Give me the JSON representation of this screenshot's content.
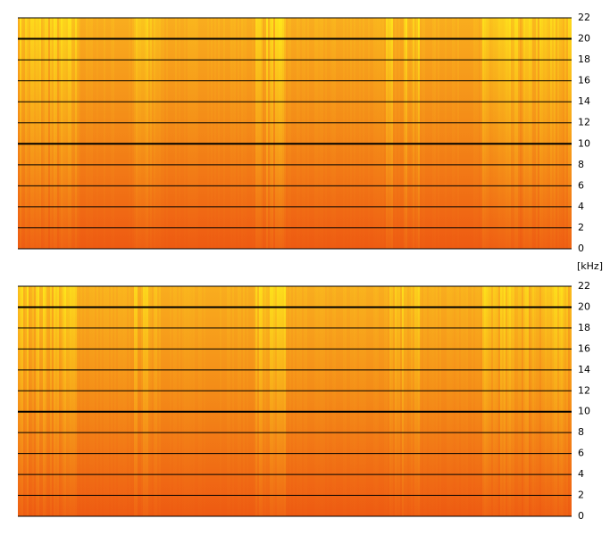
{
  "chart_data": [
    {
      "type": "spectrogram",
      "y_label": "[kHz]",
      "ylim": [
        0,
        22
      ],
      "yticks": [
        0,
        2,
        4,
        6,
        8,
        10,
        12,
        14,
        16,
        18,
        20,
        22
      ],
      "grid": true
    },
    {
      "type": "spectrogram",
      "ylim": [
        0,
        22
      ],
      "yticks": [
        0,
        2,
        4,
        6,
        8,
        10,
        12,
        14,
        16,
        18,
        20,
        22
      ],
      "grid": true
    }
  ]
}
